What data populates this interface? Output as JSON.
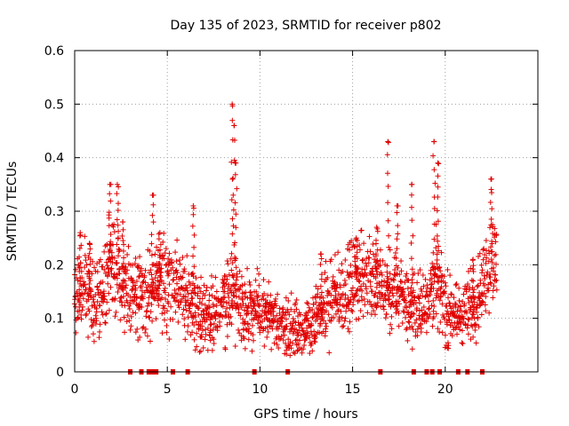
{
  "chart_data": {
    "type": "scatter",
    "title": "Day 135 of 2023, SRMTID for receiver p802",
    "xlabel": "GPS time / hours",
    "ylabel": "SRMTID / TECUs",
    "xlim": [
      0,
      25
    ],
    "ylim": [
      0,
      0.6
    ],
    "x_ticks": [
      "0",
      "5",
      "10",
      "15",
      "20"
    ],
    "y_ticks": [
      "0",
      "0.1",
      "0.2",
      "0.3",
      "0.4",
      "0.5",
      "0.6"
    ],
    "grid": true,
    "marker": "plus",
    "color": "#e00000",
    "trend": [
      [
        0.0,
        0.14
      ],
      [
        0.5,
        0.16
      ],
      [
        1.0,
        0.13
      ],
      [
        1.5,
        0.16
      ],
      [
        2.0,
        0.2
      ],
      [
        2.5,
        0.18
      ],
      [
        3.0,
        0.14
      ],
      [
        3.5,
        0.15
      ],
      [
        4.0,
        0.14
      ],
      [
        4.5,
        0.16
      ],
      [
        5.0,
        0.17
      ],
      [
        5.5,
        0.16
      ],
      [
        6.0,
        0.14
      ],
      [
        6.5,
        0.12
      ],
      [
        7.0,
        0.11
      ],
      [
        7.5,
        0.11
      ],
      [
        8.0,
        0.12
      ],
      [
        8.5,
        0.15
      ],
      [
        9.0,
        0.13
      ],
      [
        9.5,
        0.12
      ],
      [
        10.0,
        0.11
      ],
      [
        10.5,
        0.1
      ],
      [
        11.0,
        0.09
      ],
      [
        11.5,
        0.08
      ],
      [
        12.0,
        0.08
      ],
      [
        12.5,
        0.08
      ],
      [
        13.0,
        0.09
      ],
      [
        13.5,
        0.12
      ],
      [
        14.0,
        0.13
      ],
      [
        14.5,
        0.15
      ],
      [
        15.0,
        0.16
      ],
      [
        15.5,
        0.18
      ],
      [
        16.0,
        0.18
      ],
      [
        16.5,
        0.15
      ],
      [
        17.0,
        0.14
      ],
      [
        17.5,
        0.15
      ],
      [
        18.0,
        0.13
      ],
      [
        18.5,
        0.11
      ],
      [
        19.0,
        0.14
      ],
      [
        19.5,
        0.18
      ],
      [
        20.0,
        0.12
      ],
      [
        20.5,
        0.1
      ],
      [
        21.0,
        0.11
      ],
      [
        21.5,
        0.12
      ],
      [
        22.0,
        0.17
      ],
      [
        22.5,
        0.21
      ],
      [
        22.8,
        0.2
      ]
    ],
    "peaks": [
      {
        "x": 0.3,
        "y": 0.26
      },
      {
        "x": 0.8,
        "y": 0.24
      },
      {
        "x": 1.9,
        "y": 0.35
      },
      {
        "x": 2.3,
        "y": 0.35
      },
      {
        "x": 2.6,
        "y": 0.28
      },
      {
        "x": 4.2,
        "y": 0.33
      },
      {
        "x": 4.6,
        "y": 0.26
      },
      {
        "x": 6.4,
        "y": 0.31
      },
      {
        "x": 8.5,
        "y": 0.5
      },
      {
        "x": 8.6,
        "y": 0.46
      },
      {
        "x": 8.7,
        "y": 0.39
      },
      {
        "x": 13.3,
        "y": 0.22
      },
      {
        "x": 15.2,
        "y": 0.25
      },
      {
        "x": 16.3,
        "y": 0.27
      },
      {
        "x": 16.9,
        "y": 0.43
      },
      {
        "x": 17.4,
        "y": 0.31
      },
      {
        "x": 18.2,
        "y": 0.35
      },
      {
        "x": 19.4,
        "y": 0.43
      },
      {
        "x": 19.6,
        "y": 0.39
      },
      {
        "x": 21.5,
        "y": 0.21
      },
      {
        "x": 22.5,
        "y": 0.36
      }
    ],
    "zero_values_x": [
      3.0,
      3.6,
      4.0,
      4.2,
      4.4,
      5.3,
      6.1,
      9.7,
      11.5,
      16.5,
      18.3,
      19.0,
      19.3,
      19.7,
      20.7,
      21.2,
      22.0
    ]
  }
}
